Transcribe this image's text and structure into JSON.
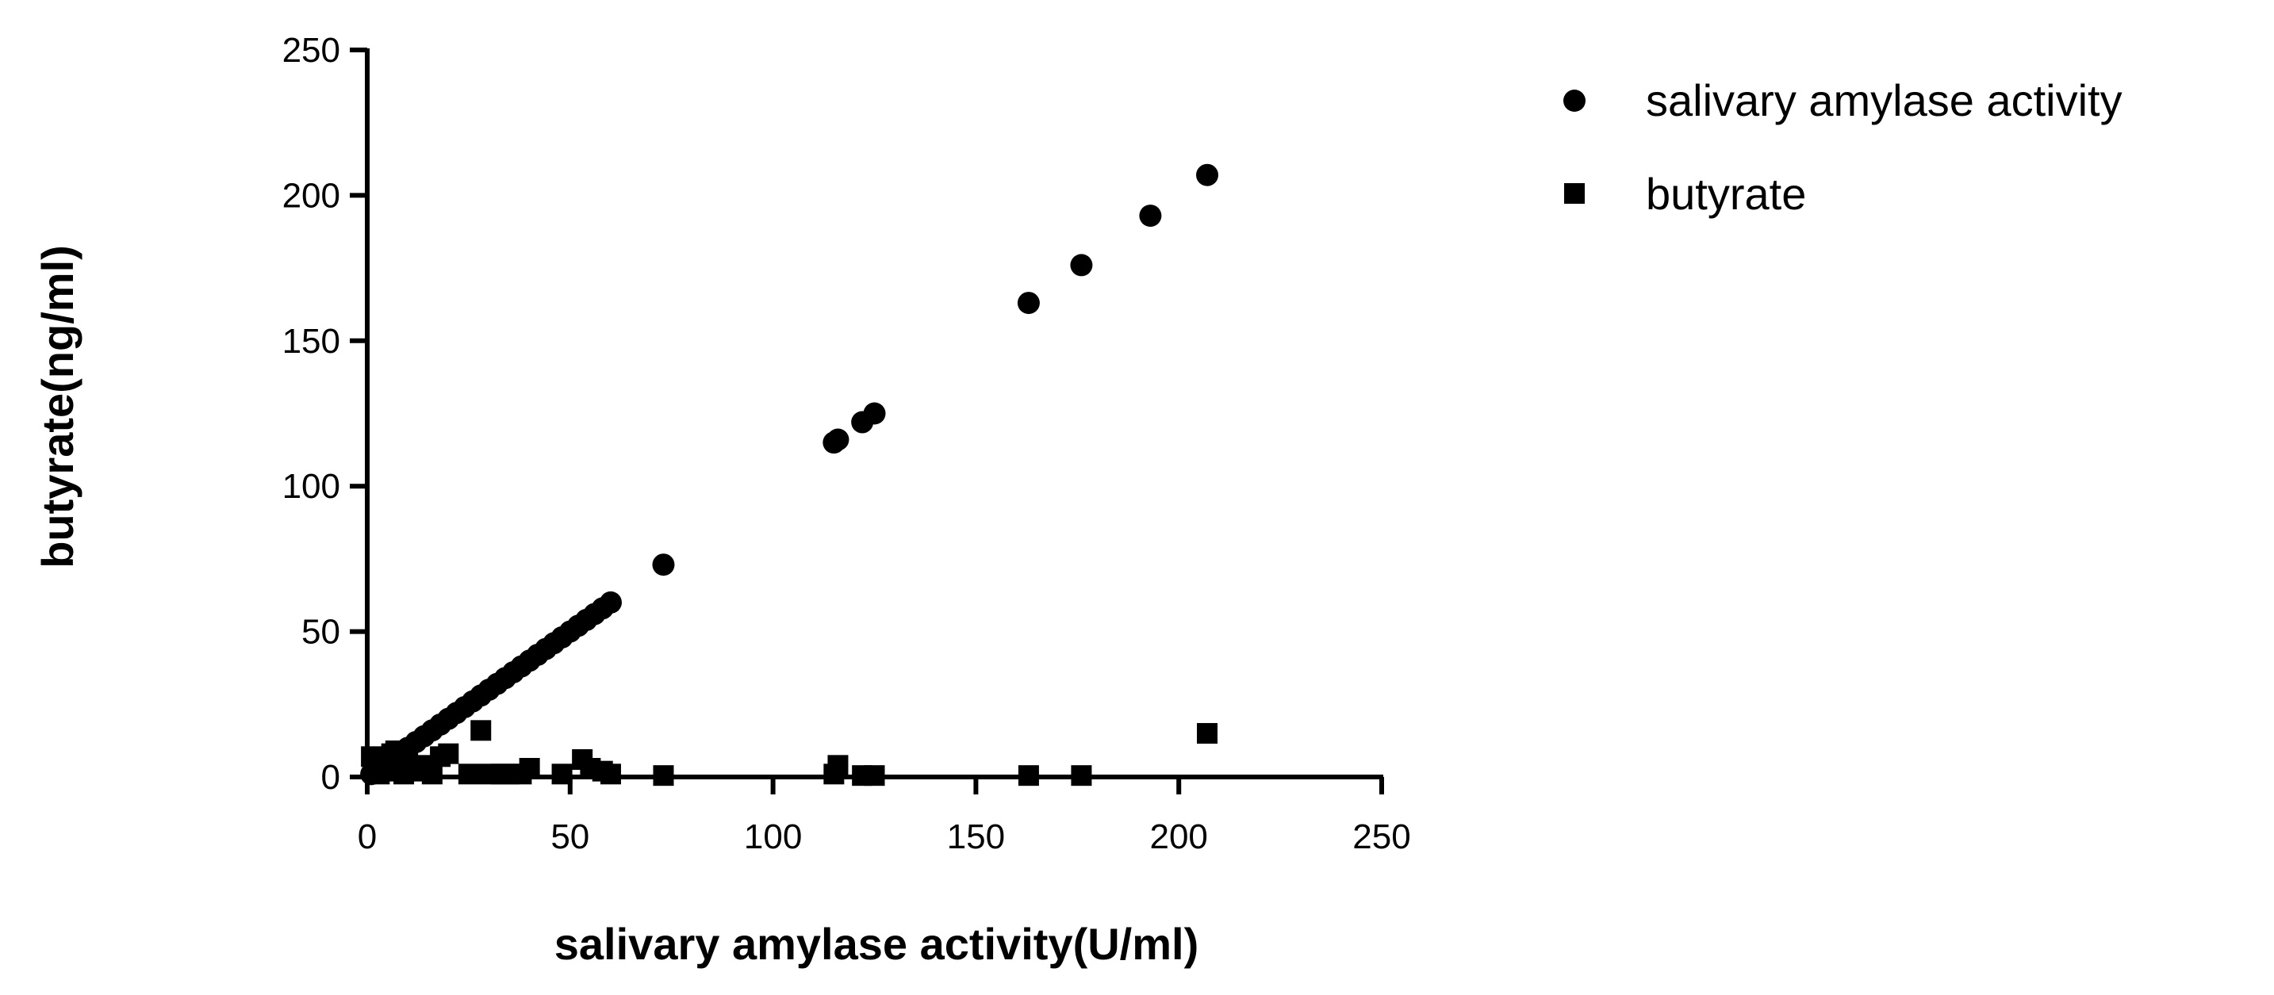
{
  "chart_data": {
    "type": "scatter",
    "xlabel": "salivary amylase activity(U/ml)",
    "ylabel": "butyrate(ng/ml)",
    "xlim": [
      0,
      250
    ],
    "ylim": [
      0,
      250
    ],
    "xticks": [
      "0",
      "50",
      "100",
      "150",
      "200",
      "250"
    ],
    "yticks": [
      "0",
      "50",
      "100",
      "150",
      "200",
      "250"
    ],
    "grid": false,
    "legend_position": "top-right",
    "series": [
      {
        "name": "salivary amylase activity",
        "marker": "circle",
        "color": "#000000",
        "points": [
          [
            1,
            1
          ],
          [
            2,
            2
          ],
          [
            3,
            3
          ],
          [
            4,
            4
          ],
          [
            5,
            5
          ],
          [
            6,
            6
          ],
          [
            7,
            7
          ],
          [
            8,
            8
          ],
          [
            9,
            9
          ],
          [
            10,
            10
          ],
          [
            12,
            12
          ],
          [
            14,
            14
          ],
          [
            16,
            16
          ],
          [
            18,
            18
          ],
          [
            20,
            20
          ],
          [
            22,
            22
          ],
          [
            24,
            24
          ],
          [
            26,
            26
          ],
          [
            28,
            28
          ],
          [
            30,
            30
          ],
          [
            32,
            32
          ],
          [
            34,
            34
          ],
          [
            36,
            36
          ],
          [
            38,
            38
          ],
          [
            40,
            40
          ],
          [
            42,
            42
          ],
          [
            44,
            44
          ],
          [
            46,
            46
          ],
          [
            48,
            48
          ],
          [
            50,
            50
          ],
          [
            52,
            52
          ],
          [
            54,
            54
          ],
          [
            56,
            56
          ],
          [
            58,
            58
          ],
          [
            60,
            60
          ],
          [
            73,
            73
          ],
          [
            115,
            115
          ],
          [
            116,
            116
          ],
          [
            122,
            122
          ],
          [
            125,
            125
          ],
          [
            163,
            163
          ],
          [
            176,
            176
          ],
          [
            193,
            193
          ],
          [
            207,
            207
          ]
        ]
      },
      {
        "name": "butyrate",
        "marker": "square",
        "color": "#000000",
        "points": [
          [
            1,
            7
          ],
          [
            2,
            3
          ],
          [
            3,
            1
          ],
          [
            4,
            5
          ],
          [
            5,
            2
          ],
          [
            6,
            8
          ],
          [
            7,
            9
          ],
          [
            8,
            3
          ],
          [
            9,
            1
          ],
          [
            10,
            5
          ],
          [
            12,
            2
          ],
          [
            14,
            4
          ],
          [
            16,
            1
          ],
          [
            18,
            7
          ],
          [
            20,
            8
          ],
          [
            25,
            1
          ],
          [
            28,
            16
          ],
          [
            30,
            1
          ],
          [
            33,
            1
          ],
          [
            35,
            1
          ],
          [
            38,
            1
          ],
          [
            40,
            3
          ],
          [
            48,
            1
          ],
          [
            53,
            6
          ],
          [
            55,
            3
          ],
          [
            58,
            2
          ],
          [
            60,
            1
          ],
          [
            73,
            0.5
          ],
          [
            115,
            1
          ],
          [
            116,
            4
          ],
          [
            122,
            0.5
          ],
          [
            125,
            0.5
          ],
          [
            163,
            0.5
          ],
          [
            176,
            0.5
          ],
          [
            207,
            15
          ]
        ]
      }
    ]
  }
}
